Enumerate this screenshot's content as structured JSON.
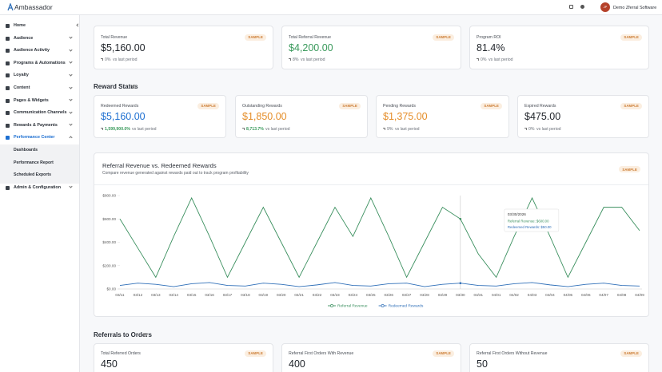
{
  "header": {
    "logo": "Ambassador",
    "avatar": "JP",
    "account": "Demo Zferral Software"
  },
  "sidebar": {
    "items": [
      {
        "label": "Home",
        "expandable": false
      },
      {
        "label": "Audience",
        "expandable": true
      },
      {
        "label": "Audience Activity",
        "expandable": true
      },
      {
        "label": "Programs & Automations",
        "expandable": true
      },
      {
        "label": "Loyalty",
        "expandable": true
      },
      {
        "label": "Content",
        "expandable": true
      },
      {
        "label": "Pages & Widgets",
        "expandable": true
      },
      {
        "label": "Communication Channels",
        "expandable": true
      },
      {
        "label": "Rewards & Payments",
        "expandable": true
      },
      {
        "label": "Performance Center",
        "expandable": true,
        "active": true,
        "children": [
          "Dashboards",
          "Performance Report",
          "Scheduled Exports"
        ]
      },
      {
        "label": "Admin & Configuration",
        "expandable": true
      }
    ]
  },
  "summary_cards": [
    {
      "title": "Total Revenue",
      "badge": "SAMPLE",
      "value": "$5,160.00",
      "color": "#1f2329",
      "change": "0%",
      "change_suffix": "vs last period"
    },
    {
      "title": "Total Referral Revenue",
      "badge": "SAMPLE",
      "value": "$4,200.00",
      "color": "#3a9a5c",
      "change": "8%",
      "change_suffix": "vs last period"
    },
    {
      "title": "Program ROI",
      "badge": "SAMPLE",
      "value": "81.4%",
      "color": "#1f2329",
      "change": "0%",
      "change_suffix": "vs last period"
    }
  ],
  "reward_status": {
    "title": "Reward Status",
    "cards": [
      {
        "title": "Redeemed Rewards",
        "badge": "SAMPLE",
        "value": "$5,160.00",
        "color": "#1d6fd1",
        "change": "1,599,900.0%",
        "change_color": "#3a9a5c",
        "change_suffix": "vs last period"
      },
      {
        "title": "Outstanding Rewards",
        "badge": "SAMPLE",
        "value": "$1,850.00",
        "color": "#e58e2a",
        "change": "8,713.7%",
        "change_color": "#3a9a5c",
        "change_suffix": "vs last period"
      },
      {
        "title": "Pending Rewards",
        "badge": "SAMPLE",
        "value": "$1,375.00",
        "color": "#e58e2a",
        "change": "9%",
        "change_suffix": "vs last period"
      },
      {
        "title": "Expired Rewards",
        "badge": "SAMPLE",
        "value": "$475.00",
        "color": "#1f2329",
        "change": "0%",
        "change_suffix": "vs last period"
      }
    ]
  },
  "chart": {
    "type": "line",
    "title": "Referral Revenue vs. Redeemed Rewards",
    "subtitle": "Compare revenue generated against rewards paid out to track program profitability",
    "badge": "SAMPLE",
    "categories": [
      "03/11",
      "03/12",
      "03/13",
      "03/14",
      "03/15",
      "03/16",
      "03/17",
      "03/18",
      "03/19",
      "03/20",
      "03/21",
      "03/22",
      "03/23",
      "03/24",
      "03/25",
      "03/26",
      "03/27",
      "03/28",
      "03/29",
      "03/30",
      "03/31",
      "04/01",
      "04/02",
      "04/03",
      "04/04",
      "04/05",
      "04/06",
      "04/07",
      "04/08",
      "04/09"
    ],
    "series": [
      {
        "name": "Referral Revenue",
        "color": "#3a8f5e",
        "values": [
          600,
          350,
          100,
          450,
          780,
          450,
          100,
          400,
          700,
          400,
          100,
          400,
          700,
          450,
          780,
          450,
          100,
          400,
          700,
          600,
          300,
          100,
          450,
          780,
          450,
          100,
          400,
          700,
          700,
          500
        ]
      },
      {
        "name": "Redeemed Rewards",
        "color": "#2f6fb8",
        "values": [
          30,
          50,
          40,
          20,
          45,
          55,
          30,
          25,
          50,
          40,
          20,
          35,
          55,
          30,
          25,
          45,
          50,
          20,
          40,
          50,
          30,
          25,
          45,
          55,
          35,
          20,
          40,
          50,
          30,
          25
        ]
      }
    ],
    "ylim": [
      0,
      800
    ],
    "yticks": [
      {
        "value": 0,
        "label": "$0.00"
      },
      {
        "value": 200,
        "label": "$200.00"
      },
      {
        "value": 400,
        "label": "$400.00"
      },
      {
        "value": 600,
        "label": "$600.00"
      },
      {
        "value": 800,
        "label": "$800.00"
      }
    ],
    "grid": false,
    "tooltip": {
      "date": "03/30/2026",
      "lines": [
        "Referral Revenue: $600.00",
        "Redeemed Rewards: $50.00"
      ]
    }
  },
  "referrals_to_orders": {
    "title": "Referrals to Orders",
    "cards": [
      {
        "title": "Total Referred Orders",
        "badge": "SAMPLE",
        "value": "450",
        "color": "#1f2329"
      },
      {
        "title": "Referral First Orders With Revenue",
        "badge": "SAMPLE",
        "value": "400",
        "color": "#1f2329"
      },
      {
        "title": "Referral First Orders Without Revenue",
        "badge": "SAMPLE",
        "value": "50",
        "color": "#1f2329"
      }
    ]
  }
}
